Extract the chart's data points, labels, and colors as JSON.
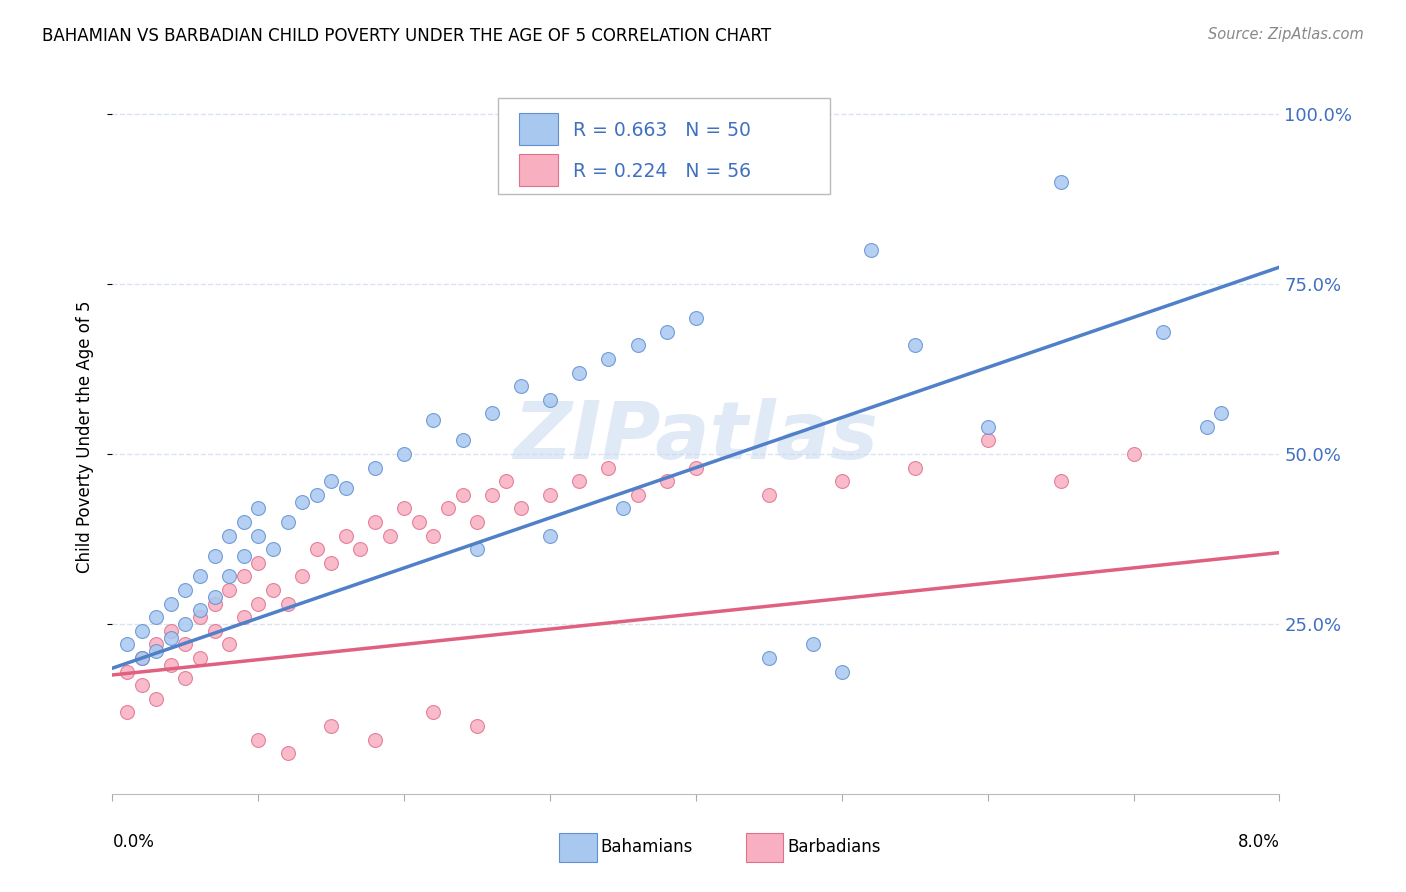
{
  "title": "BAHAMIAN VS BARBADIAN CHILD POVERTY UNDER THE AGE OF 5 CORRELATION CHART",
  "source": "Source: ZipAtlas.com",
  "ylabel": "Child Poverty Under the Age of 5",
  "blue_scatter_color": "#A8C8F0",
  "blue_edge_color": "#6090D0",
  "pink_scatter_color": "#F8B0C0",
  "pink_edge_color": "#E07090",
  "blue_line_color": "#5080C8",
  "pink_line_color": "#E06080",
  "legend_text_color": "#4070C0",
  "watermark_color": "#C8D8F0",
  "background_color": "#FFFFFF",
  "grid_color": "#D8E4F0",
  "ytick_color": "#4070C0",
  "xlim": [
    0.0,
    0.08
  ],
  "ylim": [
    0.0,
    1.05
  ],
  "ytick_positions": [
    0.25,
    0.5,
    0.75,
    1.0
  ],
  "ytick_labels": [
    "25.0%",
    "50.0%",
    "75.0%",
    "100.0%"
  ],
  "blue_trend_y0": 0.185,
  "blue_trend_y1": 0.775,
  "pink_trend_y0": 0.175,
  "pink_trend_y1": 0.355,
  "bahamians_x": [
    0.001,
    0.002,
    0.002,
    0.003,
    0.003,
    0.004,
    0.004,
    0.005,
    0.005,
    0.006,
    0.006,
    0.007,
    0.007,
    0.008,
    0.008,
    0.009,
    0.009,
    0.01,
    0.01,
    0.011,
    0.012,
    0.013,
    0.014,
    0.015,
    0.016,
    0.018,
    0.02,
    0.022,
    0.024,
    0.026,
    0.028,
    0.03,
    0.032,
    0.034,
    0.036,
    0.038,
    0.04,
    0.035,
    0.03,
    0.025,
    0.045,
    0.048,
    0.05,
    0.052,
    0.055,
    0.06,
    0.065,
    0.072,
    0.075,
    0.076
  ],
  "bahamians_y": [
    0.22,
    0.2,
    0.24,
    0.21,
    0.26,
    0.23,
    0.28,
    0.25,
    0.3,
    0.27,
    0.32,
    0.29,
    0.35,
    0.32,
    0.38,
    0.35,
    0.4,
    0.38,
    0.42,
    0.36,
    0.4,
    0.43,
    0.44,
    0.46,
    0.45,
    0.48,
    0.5,
    0.55,
    0.52,
    0.56,
    0.6,
    0.58,
    0.62,
    0.64,
    0.66,
    0.68,
    0.7,
    0.42,
    0.38,
    0.36,
    0.2,
    0.22,
    0.18,
    0.8,
    0.66,
    0.54,
    0.9,
    0.68,
    0.54,
    0.56
  ],
  "barbadians_x": [
    0.001,
    0.001,
    0.002,
    0.002,
    0.003,
    0.003,
    0.004,
    0.004,
    0.005,
    0.005,
    0.006,
    0.006,
    0.007,
    0.007,
    0.008,
    0.008,
    0.009,
    0.009,
    0.01,
    0.01,
    0.011,
    0.012,
    0.013,
    0.014,
    0.015,
    0.016,
    0.017,
    0.018,
    0.019,
    0.02,
    0.021,
    0.022,
    0.023,
    0.024,
    0.025,
    0.026,
    0.027,
    0.028,
    0.03,
    0.032,
    0.034,
    0.036,
    0.038,
    0.04,
    0.045,
    0.05,
    0.055,
    0.06,
    0.065,
    0.07,
    0.01,
    0.012,
    0.015,
    0.018,
    0.022,
    0.025
  ],
  "barbadians_y": [
    0.18,
    0.12,
    0.16,
    0.2,
    0.14,
    0.22,
    0.19,
    0.24,
    0.17,
    0.22,
    0.26,
    0.2,
    0.24,
    0.28,
    0.22,
    0.3,
    0.26,
    0.32,
    0.28,
    0.34,
    0.3,
    0.28,
    0.32,
    0.36,
    0.34,
    0.38,
    0.36,
    0.4,
    0.38,
    0.42,
    0.4,
    0.38,
    0.42,
    0.44,
    0.4,
    0.44,
    0.46,
    0.42,
    0.44,
    0.46,
    0.48,
    0.44,
    0.46,
    0.48,
    0.44,
    0.46,
    0.48,
    0.52,
    0.46,
    0.5,
    0.08,
    0.06,
    0.1,
    0.08,
    0.12,
    0.1
  ]
}
